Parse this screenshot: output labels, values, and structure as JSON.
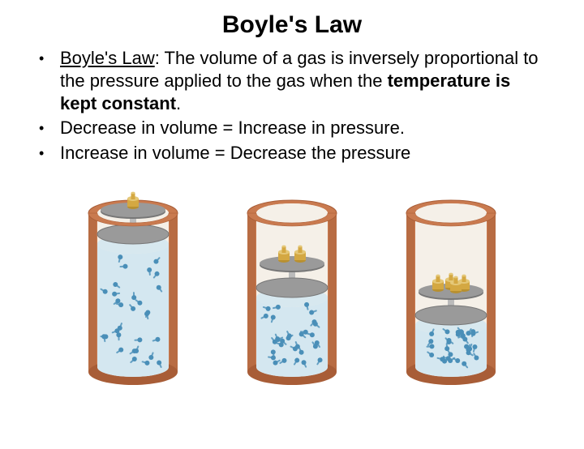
{
  "title": "Boyle's Law",
  "bullets": [
    {
      "lead": "Boyle's Law",
      "sep": ": ",
      "body1": "The volume of a gas is inversely proportional to the pressure applied to the gas when the ",
      "bold": "temperature is kept constant",
      "body2": "."
    },
    {
      "text": "Decrease in volume = Increase in pressure."
    },
    {
      "text": "Increase in volume = Decrease the pressure"
    }
  ],
  "diagram": {
    "background": "#ffffff",
    "cylinders": [
      {
        "pistonY": 70,
        "gasTopY": 82,
        "weights": 1
      },
      {
        "pistonY": 136,
        "gasTopY": 148,
        "weights": 2
      },
      {
        "pistonY": 170,
        "gasTopY": 182,
        "weights": 4
      }
    ],
    "colors": {
      "cylinderOuter": "#c97a4f",
      "cylinderOuterDark": "#a85d37",
      "cylinderInner": "#f5f0e8",
      "pistonPlate": "#9a9a9a",
      "pistonPlateDark": "#777777",
      "pistonRod": "#bbbbbb",
      "gasFill": "#d4e7f0",
      "gasParticle": "#4a8fb8",
      "weightBody": "#d4a842",
      "weightCap": "#b89030",
      "weightTop": "#e5c878"
    },
    "particleCount": 30
  }
}
